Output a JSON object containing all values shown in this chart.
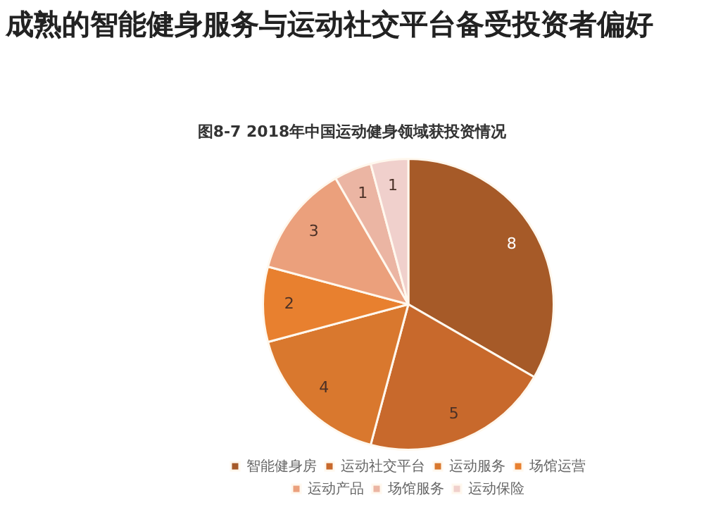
{
  "chart_data": {
    "type": "pie",
    "title": "成熟的智能健身服务与运动社交平台备受投资者偏好",
    "subtitle": "图8-7  2018年中国运动健身领域获投资情况",
    "categories": [
      "智能健身房",
      "运动社交平台",
      "运动服务",
      "场馆运营",
      "运动产品",
      "场馆服务",
      "运动保险"
    ],
    "values": [
      8,
      5,
      4,
      2,
      3,
      1,
      1
    ],
    "colors": [
      "#a65a28",
      "#c8692c",
      "#d9782e",
      "#e8802f",
      "#eba07c",
      "#ebb5a3",
      "#f0d0cc"
    ],
    "data_labels": true,
    "legend": "bottom"
  }
}
